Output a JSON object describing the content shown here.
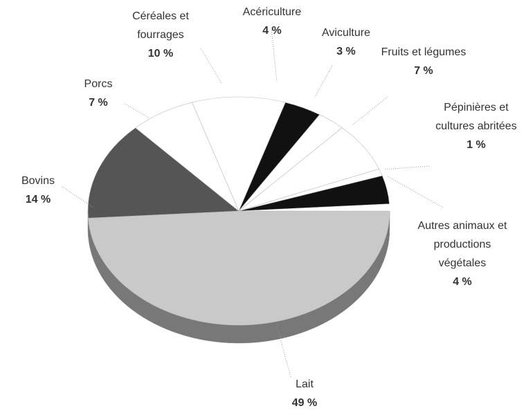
{
  "chart_data": {
    "type": "pie",
    "categories": [
      "Lait",
      "Bovins",
      "Porcs",
      "Céréales et fourrages",
      "Acériculture",
      "Aviculture",
      "Fruits et légumes",
      "Pépinières et cultures abritées",
      "Autres animaux et productions végétales"
    ],
    "values": [
      49,
      14,
      7,
      10,
      4,
      3,
      7,
      1,
      4
    ],
    "value_labels": [
      "49 %",
      "14 %",
      "7 %",
      "10 %",
      "4 %",
      "3 %",
      "7 %",
      "1 %",
      "4 %"
    ],
    "colors": [
      "#c9c9c9",
      "#555555",
      "#ffffff",
      "#ffffff",
      "#111111",
      "#ffffff",
      "#ffffff",
      "#ffffff",
      "#111111"
    ]
  }
}
